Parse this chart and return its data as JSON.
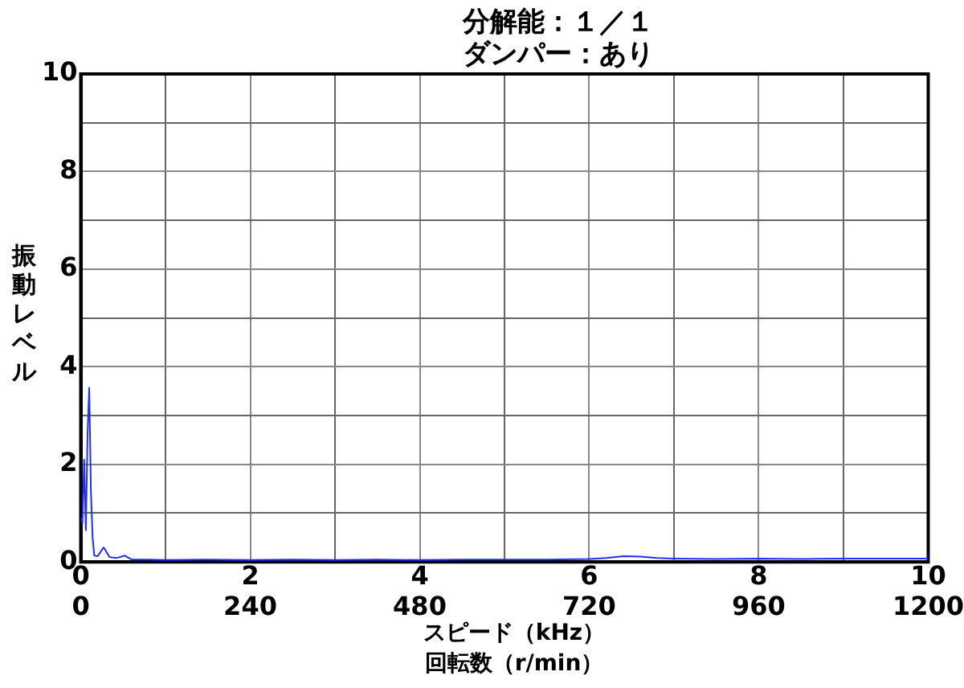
{
  "chart_data": {
    "type": "line",
    "title": "分解能：１／１",
    "subtitle": "ダンパー：あり",
    "xlabel": "スピード（kHz）",
    "x2label": "回転数（r/min）",
    "ylabel": "振動レベル",
    "series": [
      {
        "color": "#1f2fff",
        "x": [
          0,
          0.02,
          0.04,
          0.06,
          0.08,
          0.1,
          0.12,
          0.14,
          0.16,
          0.2,
          0.27,
          0.34,
          0.42,
          0.52,
          0.6,
          0.8,
          1,
          1.5,
          2,
          2.5,
          3,
          3.5,
          4,
          4.5,
          5,
          5.5,
          6,
          6.2,
          6.4,
          6.6,
          6.8,
          7,
          7.5,
          8,
          8.5,
          9,
          9.5,
          10
        ],
        "values": [
          0.9,
          0.8,
          2.1,
          0.65,
          2.6,
          3.57,
          1.44,
          0.5,
          0.13,
          0.12,
          0.3,
          0.1,
          0.08,
          0.13,
          0.05,
          0.05,
          0.04,
          0.05,
          0.04,
          0.05,
          0.04,
          0.05,
          0.04,
          0.05,
          0.05,
          0.05,
          0.06,
          0.08,
          0.12,
          0.11,
          0.08,
          0.07,
          0.06,
          0.07,
          0.06,
          0.07,
          0.07,
          0.07
        ]
      }
    ],
    "xlim": [
      0,
      10
    ],
    "xticks": [
      0,
      {
        "value": 1,
        "label": null
      },
      2,
      {
        "value": 3,
        "label": null
      },
      4,
      {
        "value": 5,
        "label": null
      },
      6,
      {
        "value": 7,
        "label": null
      },
      8,
      {
        "value": 9,
        "label": null
      },
      10
    ],
    "x2lim": [
      0,
      1200
    ],
    "x2ticks": [
      0,
      240,
      480,
      720,
      960,
      1200
    ],
    "ylim": [
      0,
      10
    ],
    "yticks": [
      0,
      {
        "value": 1,
        "label": null
      },
      2,
      {
        "value": 3,
        "label": null
      },
      4,
      {
        "value": 5,
        "label": null
      },
      6,
      {
        "value": 7,
        "label": null
      },
      8,
      {
        "value": 9,
        "label": null
      },
      10
    ],
    "grid": true,
    "legend": false,
    "marker": "none",
    "line_style": "solid"
  }
}
